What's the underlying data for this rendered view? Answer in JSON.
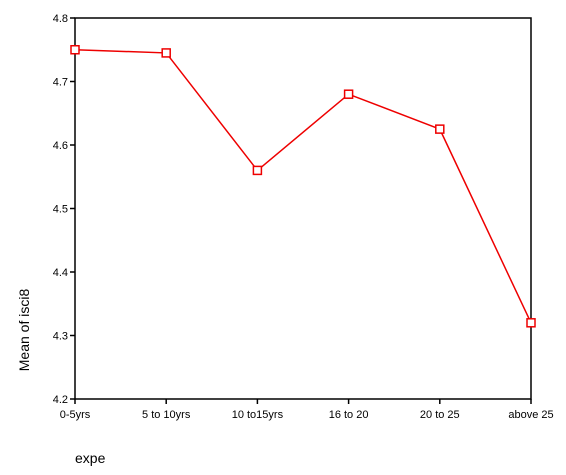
{
  "chart_data": {
    "type": "line",
    "title": "",
    "xlabel": "expe",
    "ylabel": "Mean of isci8",
    "categories": [
      "0-5yrs",
      "5 to 10yrs",
      "10 to15yrs",
      "16  to 20",
      "20 to 25",
      "above 25"
    ],
    "series": [
      {
        "values": [
          4.75,
          4.745,
          4.56,
          4.68,
          4.625,
          4.32
        ],
        "color": "#ee0000",
        "marker": "square"
      }
    ],
    "ylim": [
      4.2,
      4.8
    ],
    "yticks": [
      "4.2",
      "4.3",
      "4.4",
      "4.5",
      "4.6",
      "4.7",
      "4.8"
    ],
    "grid": false,
    "legend": "none"
  }
}
